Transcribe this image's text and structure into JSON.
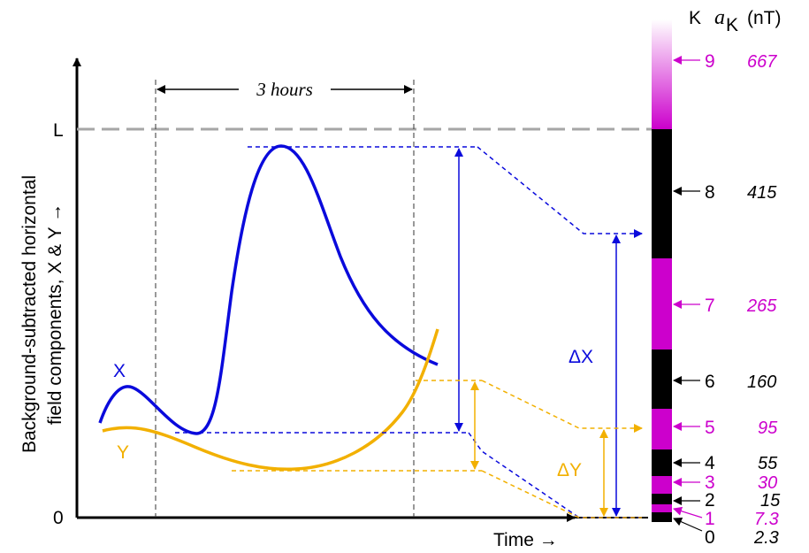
{
  "axes": {
    "y_label_line1": "Background-subtracted horizontal",
    "y_label_line2": "field components, X & Y →",
    "x_label": "Time →",
    "y_tick_L": "L",
    "y_tick_0": "0"
  },
  "annotations": {
    "interval": "3 hours",
    "series_x": "X",
    "series_y": "Y",
    "delta_x": "ΔX",
    "delta_y": "ΔY"
  },
  "scale": {
    "header_k": "K",
    "header_a": "a",
    "header_sub": "K",
    "header_unit": "(nT)",
    "levels": [
      {
        "k": "9",
        "a": "667",
        "color": "#cc00cc"
      },
      {
        "k": "8",
        "a": "415",
        "color": "#000000"
      },
      {
        "k": "7",
        "a": "265",
        "color": "#cc00cc"
      },
      {
        "k": "6",
        "a": "160",
        "color": "#000000"
      },
      {
        "k": "5",
        "a": "95",
        "color": "#cc00cc"
      },
      {
        "k": "4",
        "a": "55",
        "color": "#000000"
      },
      {
        "k": "3",
        "a": "30",
        "color": "#cc00cc"
      },
      {
        "k": "2",
        "a": "15",
        "color": "#000000"
      },
      {
        "k": "1",
        "a": "7.3",
        "color": "#cc00cc"
      },
      {
        "k": "0",
        "a": "2.3",
        "color": "#000000"
      }
    ]
  },
  "colors": {
    "x_series": "#0a0adc",
    "y_series": "#f2b000",
    "magenta": "#cc00cc",
    "black": "#000000",
    "dashed_grey": "#a6a6a6"
  }
}
